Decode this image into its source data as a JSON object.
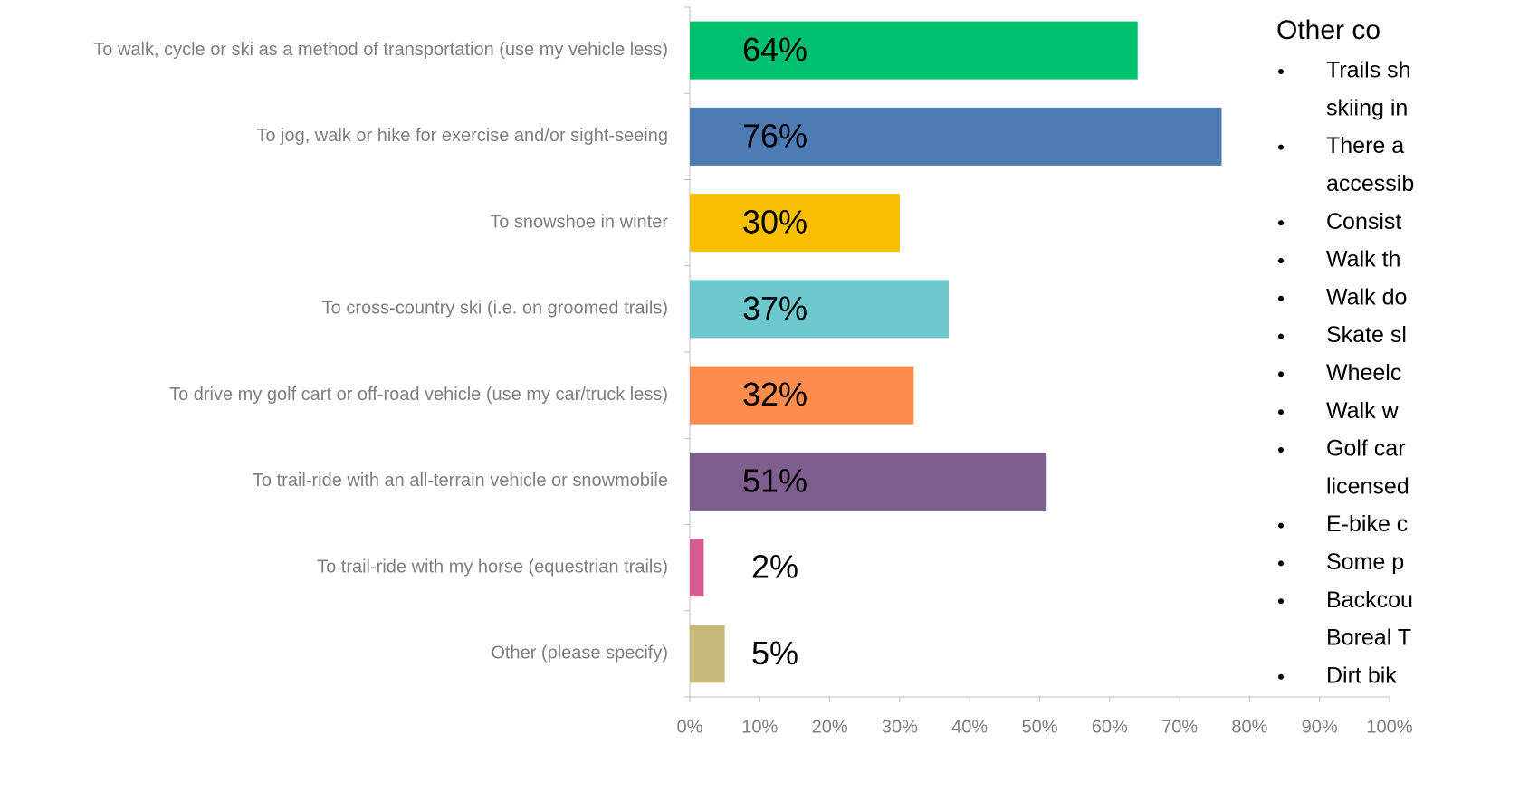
{
  "chart_data": {
    "type": "bar",
    "orientation": "horizontal",
    "categories": [
      "To walk, cycle or ski as a method of transportation (use my vehicle less)",
      "To jog, walk or hike for exercise and/or sight-seeing",
      "To snowshoe in winter",
      "To cross-country ski (i.e. on groomed trails)",
      "To drive my golf cart or off-road vehicle (use my car/truck less)",
      "To trail-ride with an all-terrain vehicle or snowmobile",
      "To trail-ride with my horse (equestrian trails)",
      "Other (please specify)"
    ],
    "values": [
      64,
      76,
      30,
      37,
      32,
      51,
      2,
      5
    ],
    "value_labels": [
      "64%",
      "76%",
      "30%",
      "37%",
      "32%",
      "51%",
      "2%",
      "5%"
    ],
    "colors": [
      "#00bf6f",
      "#4f7bb5",
      "#f7bf00",
      "#6cc8cc",
      "#ff8c4f",
      "#7e5e8e",
      "#d45c8f",
      "#c9b87c"
    ],
    "xlim": [
      0,
      100
    ],
    "xticks": [
      {
        "value": 0,
        "label": "0%"
      },
      {
        "value": 10,
        "label": "10%"
      },
      {
        "value": 20,
        "label": "20%"
      },
      {
        "value": 30,
        "label": "30%"
      },
      {
        "value": 40,
        "label": "40%"
      },
      {
        "value": 50,
        "label": "50%"
      },
      {
        "value": 60,
        "label": "60%"
      },
      {
        "value": 70,
        "label": "70%"
      },
      {
        "value": 80,
        "label": "80%"
      },
      {
        "value": 90,
        "label": "90%"
      },
      {
        "value": 100,
        "label": "100%"
      }
    ],
    "grid": false
  },
  "side_panel": {
    "title": "Other co",
    "bullets": [
      [
        "Trails sh",
        "skiing in"
      ],
      [
        "There a",
        "accessib"
      ],
      [
        "Consist"
      ],
      [
        "Walk th"
      ],
      [
        "Walk do"
      ],
      [
        "Skate sl"
      ],
      [
        "Wheelc"
      ],
      [
        "Walk w"
      ],
      [
        "Golf car",
        "licensed"
      ],
      [
        "E-bike c"
      ],
      [
        "Some p"
      ],
      [
        "Backcou",
        "Boreal T"
      ],
      [
        "Dirt bik"
      ]
    ]
  }
}
